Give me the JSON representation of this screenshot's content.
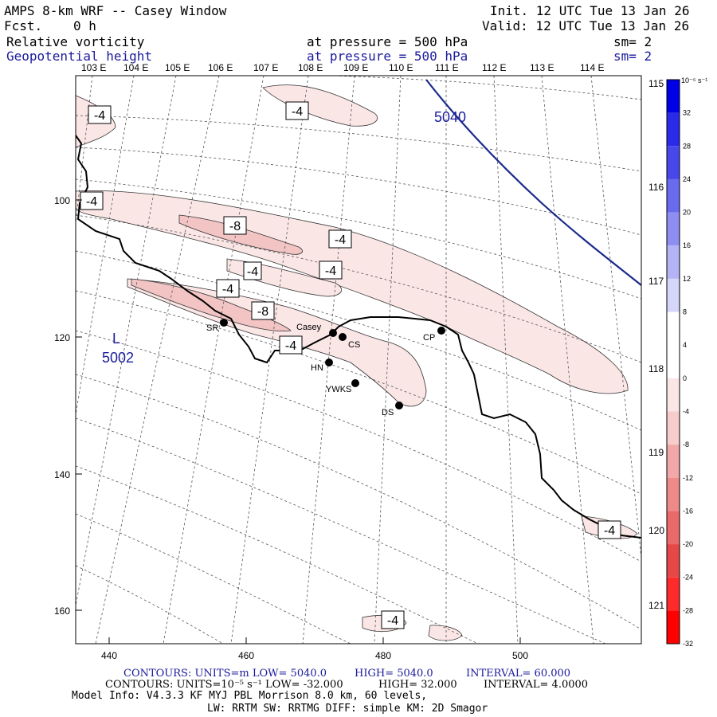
{
  "header": {
    "title": "AMPS 8-km WRF -- Casey Window",
    "fcst_label": "Fcst.",
    "fcst_value": "0 h",
    "init": "Init. 12 UTC Tue 13 Jan 26",
    "valid": "Valid: 12 UTC Tue 13 Jan 26",
    "field1": "Relative vorticity",
    "field2": "Geopotential height",
    "pressure1": "at pressure =  500 hPa",
    "pressure2": "at pressure =  500 hPa",
    "sm1": "sm= 2",
    "sm2": "sm= 2"
  },
  "colors": {
    "height_line": "#1a2a8c",
    "text_blue": "#1a1a9c",
    "vort_fill_light": "#fbe6e6",
    "vort_fill_mid": "#f2c4c4"
  },
  "lon_labels": [
    "103 E",
    "104 E",
    "105 E",
    "106 E",
    "107 E",
    "108 E",
    "109 E",
    "110 E",
    "111 E",
    "112 E",
    "113 E",
    "114 E"
  ],
  "lat_labels_right": [
    "115 E",
    "116 E",
    "117 E",
    "118 E",
    "119 E",
    "120 E",
    "121 E"
  ],
  "x_ticks": [
    "440",
    "460",
    "480",
    "500"
  ],
  "y_ticks": [
    "100",
    "120",
    "140",
    "160"
  ],
  "contour_labels": {
    "vort_neg4": "-4",
    "vort_neg8": "-8",
    "height_5040": "5040",
    "low_L": "L",
    "low_value": "5002"
  },
  "stations": [
    {
      "name": "SR"
    },
    {
      "name": "Casey"
    },
    {
      "name": "CS"
    },
    {
      "name": "HN"
    },
    {
      "name": "YWKS"
    },
    {
      "name": "DS"
    },
    {
      "name": "CP"
    }
  ],
  "colorbar": {
    "unit": "10⁻⁵ s⁻¹",
    "labels": [
      "32",
      "28",
      "24",
      "20",
      "16",
      "12",
      "8",
      "4",
      "0",
      "-4",
      "-8",
      "-12",
      "-16",
      "-20",
      "-24",
      "-28",
      "-32"
    ],
    "colors": [
      "#0000e6",
      "#2a2ae8",
      "#4848ea",
      "#6a6aee",
      "#8e8ef2",
      "#b3b3f6",
      "#d6d6fa",
      "#ffffff",
      "#ffffff",
      "#fbe6e6",
      "#f7cccc",
      "#f2a8a8",
      "#ee8a8a",
      "#ea6a6a",
      "#e64848",
      "#ff2a2a",
      "#ff0000"
    ]
  },
  "footer": {
    "contours1": "CONTOURS:  UNITS=m  LOW=  5040.0",
    "contours1_high": "HIGH=  5040.0",
    "contours1_int": "INTERVAL=   60.000",
    "contours2": "CONTOURS:  UNITS=10⁻⁵ s⁻¹  LOW= -32.000",
    "contours2_high": "HIGH=  32.000",
    "contours2_int": "INTERVAL=   4.0000",
    "model_info": "Model Info: V4.3.3   KF      MYJ PBL  Morrison               8.0 km,  60 levels,",
    "physics": "LW: RRTM SW: RRTMG   DIFF: simple KM: 2D Smagor"
  }
}
